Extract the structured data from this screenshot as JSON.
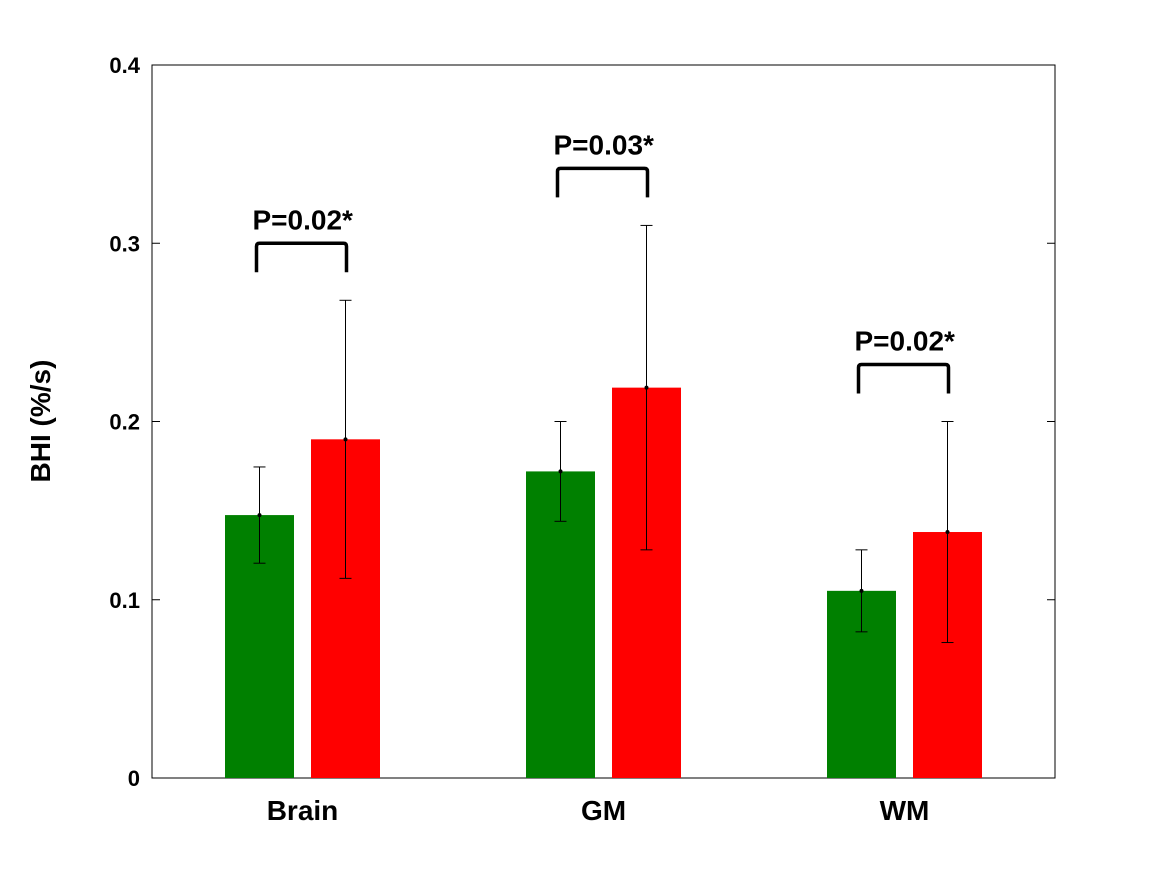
{
  "chart_data": {
    "type": "bar",
    "ylabel": "BHI (%/s)",
    "categories": [
      "Brain",
      "GM",
      "WM"
    ],
    "series": [
      {
        "color": "#008000",
        "values": [
          0.1475,
          0.172,
          0.105
        ],
        "errors": [
          0.027,
          0.028,
          0.023
        ]
      },
      {
        "color": "#ff0000",
        "values": [
          0.19,
          0.219,
          0.138
        ],
        "errors": [
          0.078,
          0.091,
          0.062
        ]
      }
    ],
    "annotations": [
      "P=0.02*",
      "P=0.03*",
      "P=0.02*"
    ],
    "ylim": [
      0,
      0.4
    ],
    "yticks": [
      0,
      0.1,
      0.2,
      0.3,
      0.4
    ],
    "grid": false
  }
}
